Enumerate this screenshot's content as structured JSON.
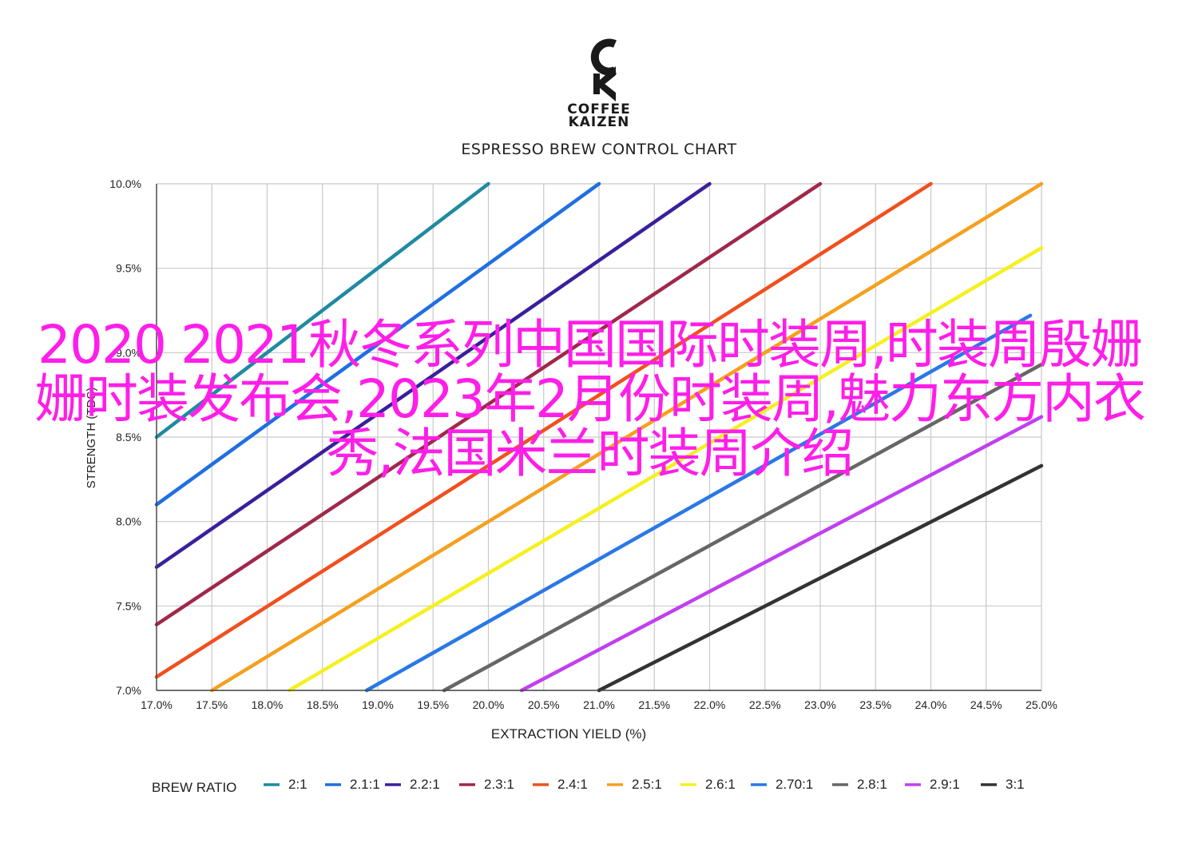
{
  "brand": {
    "line1": "COFFEE",
    "line2": "KAIZEN",
    "logo_color": "#1a1a1a"
  },
  "overlay_title": "2020 2021秋冬系列中国国际时装周,时装周殷姗姗时装发布会,2023年2月份时装周,魅力东方内衣秀,法国米兰时装周介绍",
  "overlay_color": "#ff1ee8",
  "chart_data": {
    "type": "line",
    "title": "ESPRESSO BREW CONTROL CHART",
    "xlabel": "EXTRACTION YIELD (%)",
    "ylabel": "STRENGTH (TDS)",
    "xlim": [
      17.0,
      25.0
    ],
    "ylim": [
      7.0,
      10.0
    ],
    "x_ticks": [
      "17.0%",
      "17.5%",
      "18.0%",
      "18.5%",
      "19.0%",
      "19.5%",
      "20.0%",
      "20.5%",
      "21.0%",
      "21.5%",
      "22.0%",
      "22.5%",
      "23.0%",
      "23.5%",
      "24.0%",
      "24.5%",
      "25.0%"
    ],
    "y_ticks": [
      "7.0%",
      "7.5%",
      "8.0%",
      "8.5%",
      "9.0%",
      "9.5%",
      "10.0%"
    ],
    "grid": true,
    "legend": {
      "title": "BREW RATIO",
      "placement": "bottom"
    },
    "series": [
      {
        "name": "2:1",
        "color": "#1f8aa0",
        "x": [
          17.0,
          20.0
        ],
        "y": [
          8.5,
          10.0
        ]
      },
      {
        "name": "2.1:1",
        "color": "#1f6fe0",
        "x": [
          17.0,
          21.0
        ],
        "y": [
          8.1,
          10.0
        ]
      },
      {
        "name": "2.2:1",
        "color": "#3a1f9c",
        "x": [
          17.0,
          22.0
        ],
        "y": [
          7.73,
          10.0
        ]
      },
      {
        "name": "2.3:1",
        "color": "#a0284a",
        "x": [
          17.0,
          23.0
        ],
        "y": [
          7.39,
          10.0
        ]
      },
      {
        "name": "2.4:1",
        "color": "#f0501e",
        "x": [
          17.0,
          24.0
        ],
        "y": [
          7.08,
          10.0
        ]
      },
      {
        "name": "2.5:1",
        "color": "#f5a01e",
        "x": [
          17.5,
          25.0
        ],
        "y": [
          7.0,
          10.0
        ]
      },
      {
        "name": "2.6:1",
        "color": "#f5f01e",
        "x": [
          18.2,
          25.0
        ],
        "y": [
          7.0,
          9.62
        ]
      },
      {
        "name": "2.70:1",
        "color": "#2a78e6",
        "x": [
          18.9,
          24.9
        ],
        "y": [
          7.0,
          9.22
        ]
      },
      {
        "name": "2.8:1",
        "color": "#666666",
        "x": [
          19.6,
          25.0
        ],
        "y": [
          7.0,
          8.93
        ]
      },
      {
        "name": "2.9:1",
        "color": "#c040f0",
        "x": [
          20.3,
          25.0
        ],
        "y": [
          7.0,
          8.62
        ]
      },
      {
        "name": "3:1",
        "color": "#333333",
        "x": [
          21.0,
          25.0
        ],
        "y": [
          7.0,
          8.33
        ]
      }
    ]
  }
}
